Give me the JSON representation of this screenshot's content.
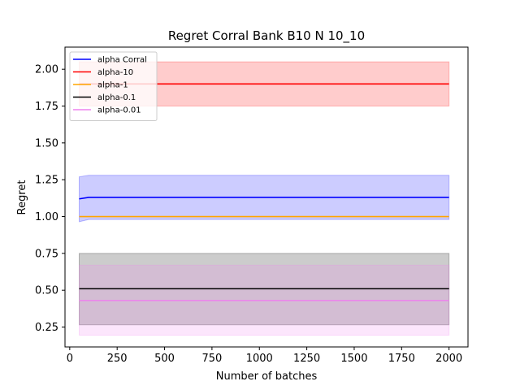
{
  "chart_data": {
    "type": "line",
    "title": "Regret Corral Bank B10 N 10_10",
    "xlabel": "Number of batches",
    "ylabel": "Regret",
    "xlim": [
      -25,
      2100
    ],
    "ylim": [
      0.115,
      2.15
    ],
    "xticks": [
      0,
      250,
      500,
      750,
      1000,
      1250,
      1500,
      1750,
      2000
    ],
    "xtick_labels": [
      "0",
      "250",
      "500",
      "750",
      "1000",
      "1250",
      "1500",
      "1750",
      "2000"
    ],
    "yticks": [
      0.25,
      0.5,
      0.75,
      1.0,
      1.25,
      1.5,
      1.75,
      2.0
    ],
    "ytick_labels": [
      "0.25",
      "0.50",
      "0.75",
      "1.00",
      "1.25",
      "1.50",
      "1.75",
      "2.00"
    ],
    "grid": false,
    "legend_position": "top-left",
    "series": [
      {
        "name": "alpha Corral",
        "color": "#0000ff",
        "x": [
          50,
          100,
          2000
        ],
        "y": [
          1.12,
          1.13,
          1.13
        ],
        "band_low": [
          0.965,
          0.98,
          0.98
        ],
        "band_high": [
          1.27,
          1.28,
          1.28
        ]
      },
      {
        "name": "alpha-10",
        "color": "#ff0000",
        "x": [
          50,
          2000
        ],
        "y": [
          1.9,
          1.9
        ],
        "band_low": [
          1.75,
          1.75
        ],
        "band_high": [
          2.05,
          2.05
        ]
      },
      {
        "name": "alpha-1",
        "color": "#ffa500",
        "x": [
          50,
          2000
        ],
        "y": [
          1.0,
          1.0
        ],
        "band_low": [
          1.0,
          1.0
        ],
        "band_high": [
          1.0,
          1.0
        ]
      },
      {
        "name": "alpha-0.1",
        "color": "#000000",
        "x": [
          50,
          2000
        ],
        "y": [
          0.51,
          0.51
        ],
        "band_low": [
          0.265,
          0.265
        ],
        "band_high": [
          0.75,
          0.75
        ]
      },
      {
        "name": "alpha-0.01",
        "color": "#ee82ee",
        "x": [
          50,
          2000
        ],
        "y": [
          0.43,
          0.43
        ],
        "band_low": [
          0.195,
          0.195
        ],
        "band_high": [
          0.67,
          0.67
        ]
      }
    ]
  }
}
